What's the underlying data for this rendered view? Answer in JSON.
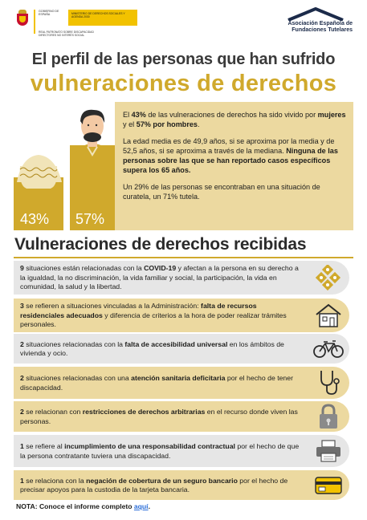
{
  "header": {
    "gov_ministry": "GOBIERNO DE ESPAÑA",
    "gov_dept": "MINISTERIO DE DERECHOS SOCIALES Y AGENDA 2030",
    "gov_sub": "REAL PATRONATO SOBRE DISCAPACIDAD",
    "gov_sub2": "DIRECTORES NO INTERÉS SOCIAL",
    "assoc_line1": "Asociación Española de",
    "assoc_line2": "Fundaciones Tutelares"
  },
  "title": {
    "line1": "El perfil de las personas que han sufrido",
    "line2": "vulneraciones de derechos"
  },
  "figures": {
    "women_pct": "43%",
    "men_pct": "57%"
  },
  "stats": {
    "p1_a": "El ",
    "p1_b": "43%",
    "p1_c": " de las vulneraciones de derechos ha sido vivido por ",
    "p1_d": "mujeres",
    "p1_e": " y el ",
    "p1_f": "57% por hombres",
    "p1_g": ".",
    "p2_a": "La edad media es de 49,9 años, si se aproxima por la media y de 52,5 años, si se aproxima a través de la mediana. ",
    "p2_b": "Ninguna de las personas sobre las que se han reportado casos específicos supera los 65 años.",
    "p3": "Un 29% de las personas se encontraban en una situación de curatela, un 71% tutela."
  },
  "section": {
    "title": "Vulneraciones de derechos recibidas"
  },
  "items": [
    {
      "a": "9",
      "b": " situaciones están relacionadas con la ",
      "c": "COVID-19",
      "d": " y afectan a la persona en su derecho a la igualdad, la no discriminación, la vida familiar y social, la participación, la vida en comunidad, la salud y la libertad.",
      "icon": "diamond-pattern-icon"
    },
    {
      "a": "3",
      "b": " se refieren a situaciones vinculadas a la Administración: ",
      "c": "falta de recursos residenciales adecuados",
      "d": " y diferencia de criterios a la hora de poder realizar trámites personales.",
      "icon": "house-icon"
    },
    {
      "a": "2",
      "b": " situaciones relacionadas con la ",
      "c": "falta de accesibilidad universal",
      "d": " en los ámbitos de vivienda y ocio.",
      "icon": "bicycle-icon"
    },
    {
      "a": "2",
      "b": " situaciones relacionadas con una ",
      "c": "atención sanitaria deficitaria",
      "d": " por el hecho de tener discapacidad.",
      "icon": "stethoscope-icon"
    },
    {
      "a": "2",
      "b": " se relacionan con ",
      "c": "restricciones de derechos arbitrarias",
      "d": " en el recurso donde viven las personas.",
      "icon": "padlock-icon"
    },
    {
      "a": "1",
      "b": " se refiere al ",
      "c": "incumplimiento de una responsabilidad contractual",
      "d": " por el hecho de que la persona contratante tuviera una discapacidad.",
      "icon": "printer-icon"
    },
    {
      "a": "1",
      "b": " se relaciona con la ",
      "c": "negación de cobertura de un seguro bancario",
      "d": " por el hecho de precisar apoyos para la custodia de la tarjeta bancaria.",
      "icon": "bank-card-icon"
    }
  ],
  "nota": {
    "prefix": "NOTA: Conoce el informe completo ",
    "link": "aquí",
    "suffix": "."
  },
  "colors": {
    "gold": "#d0a92c",
    "beige": "#ecd9a0",
    "grey": "#e6e6e6",
    "link": "#2a6dd8"
  }
}
